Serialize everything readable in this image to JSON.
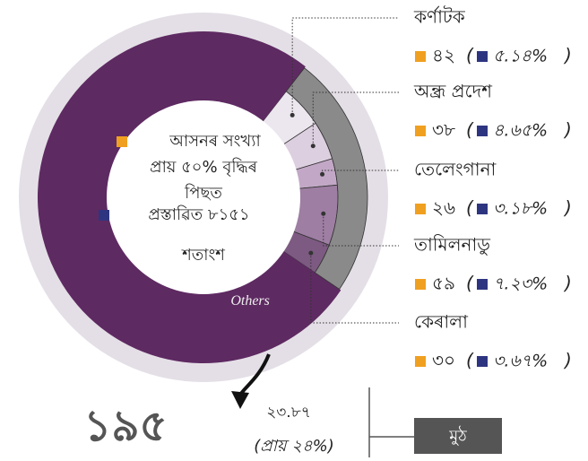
{
  "chart_data": {
    "type": "pie",
    "categories": [
      "কৰ্ণাটক",
      "অন্ধ্ৰ প্ৰদেশ",
      "তেলেংগানা",
      "তামিলনাডু",
      "কেৰালা"
    ],
    "values": [
      42,
      38,
      26,
      59,
      30
    ],
    "value_labels": [
      "৪২",
      "৩৮",
      "২৬",
      "৫৯",
      "৩০"
    ],
    "shares": [
      "৫.১৪%",
      "৪.৬৫%",
      "৩.১৮%",
      "৭.২৩%",
      "৩.৬৭%"
    ],
    "colors": [
      "#ece6ef",
      "#dccfdf",
      "#c2a8c6",
      "#9e7ea3",
      "#7d5a82"
    ],
    "others": {
      "name": "Others",
      "value": 621,
      "color": "#5e2a62"
    },
    "legend": [
      {
        "text": "আসনৰ সংখ্যা প্ৰায় ৫০% বৃদ্ধিৰ পিছত",
        "color": "#f0a020"
      },
      {
        "text": "প্ৰস্তাৱিত ৮১৫১ শতাংশ",
        "color": "#2e3580"
      }
    ],
    "total_label": "১৯৫",
    "total_share_label": "২৩.৮৭",
    "approx_label": "(প্ৰায় ২৪%)",
    "total_box": "মুঠ"
  }
}
